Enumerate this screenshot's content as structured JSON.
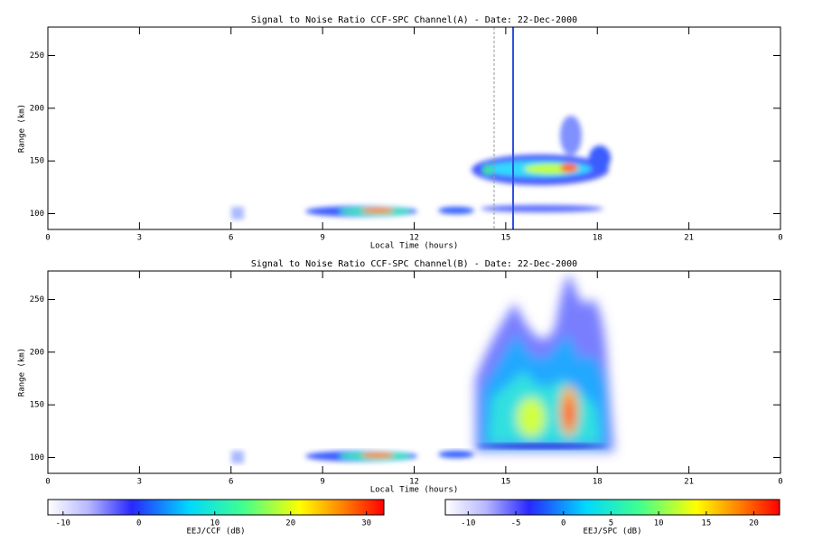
{
  "chart_data": [
    {
      "type": "heatmap",
      "title": "Signal to Noise Ratio CCF-SPC Channel(A) - Date: 22-Dec-2000",
      "xlabel": "Local Time (hours)",
      "ylabel": "Range (km)",
      "xlim": [
        0,
        24
      ],
      "xticks": [
        0,
        3,
        6,
        9,
        12,
        15,
        18,
        21,
        {
          "value": 24,
          "label": "0"
        }
      ],
      "ylim": [
        85,
        277
      ],
      "yticks": [
        100,
        150,
        200,
        250
      ]
    },
    {
      "type": "heatmap",
      "title": "Signal to Noise Ratio CCF-SPC Channel(B) - Date: 22-Dec-2000",
      "xlabel": "Local Time (hours)",
      "ylabel": "Range (km)",
      "xlim": [
        0,
        24
      ],
      "xticks": [
        0,
        3,
        6,
        9,
        12,
        15,
        18,
        21,
        {
          "value": 24,
          "label": "0"
        }
      ],
      "ylim": [
        85,
        277
      ],
      "yticks": [
        100,
        150,
        200,
        250
      ]
    }
  ],
  "colorbars": [
    {
      "label": "EEJ/CCF (dB)",
      "lim": [
        -12,
        32.3
      ],
      "ticks": [
        -10,
        0,
        10,
        20,
        30
      ]
    },
    {
      "label": "EEJ/SPC (dB)",
      "lim": [
        -12.4,
        22.7
      ],
      "ticks": [
        -10,
        -5,
        0,
        5,
        10,
        15,
        20
      ]
    }
  ]
}
